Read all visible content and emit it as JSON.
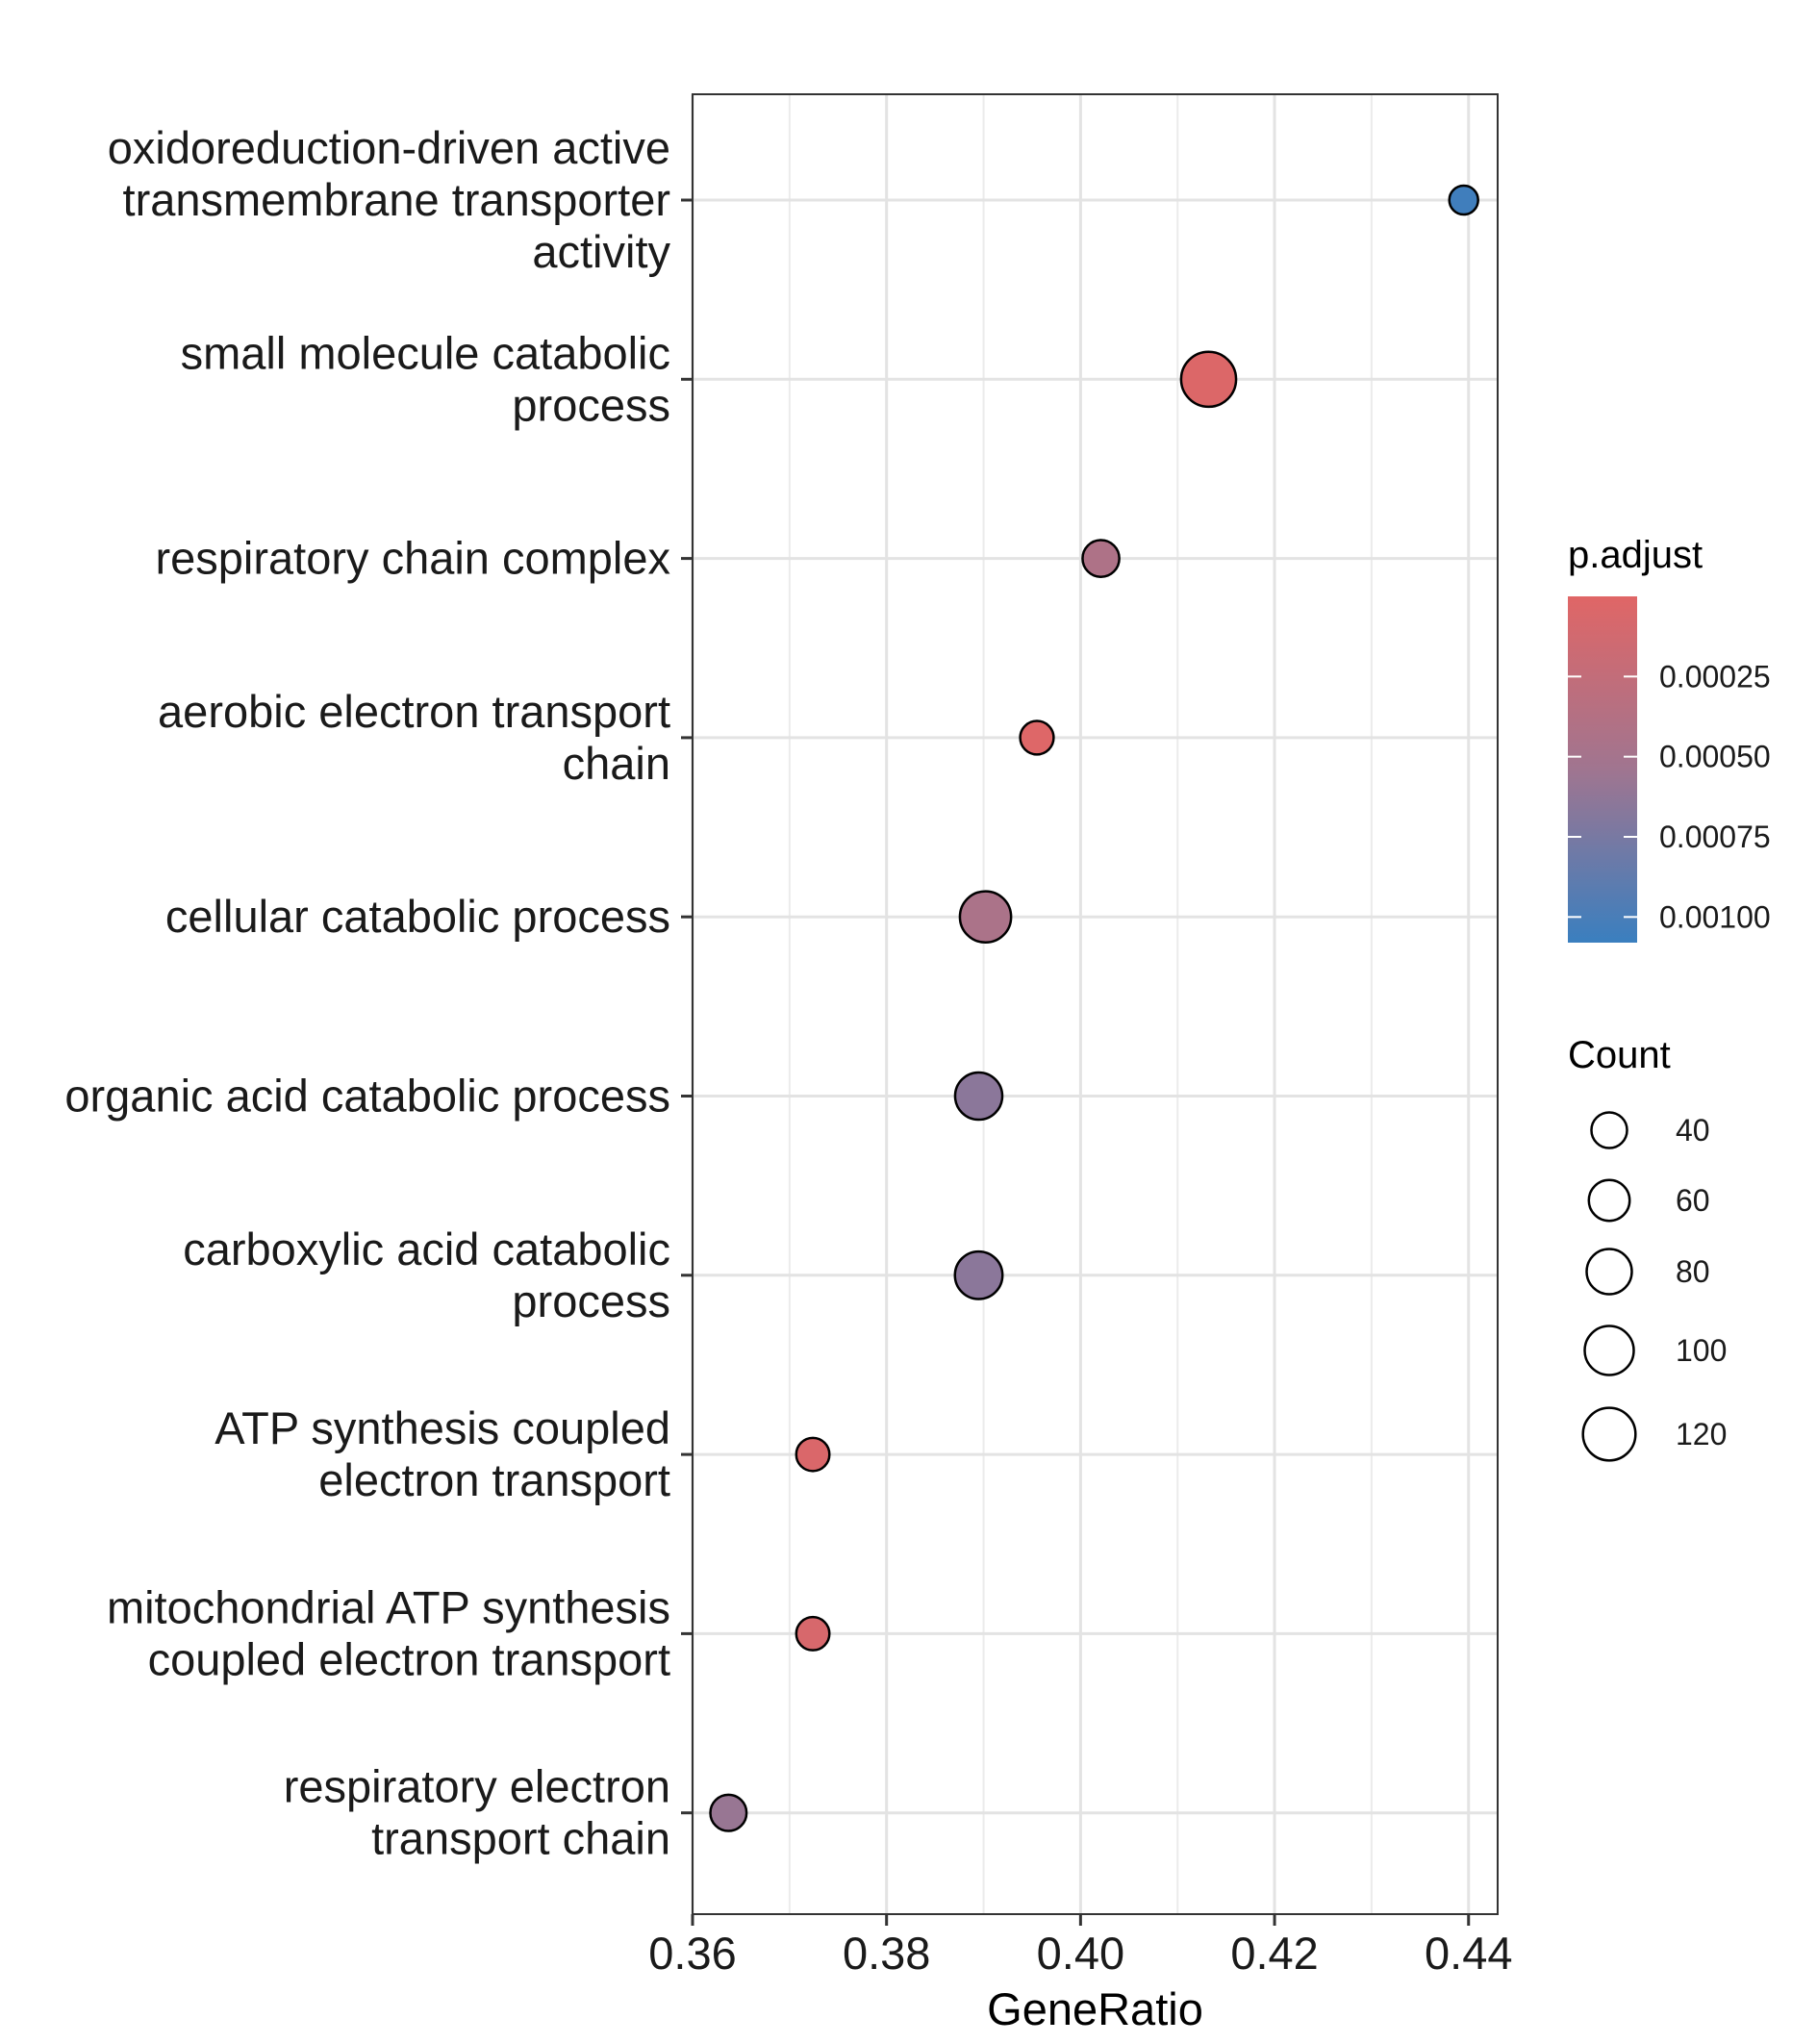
{
  "chart_data": {
    "type": "scatter",
    "xlabel": "GeneRatio",
    "ylabel": "",
    "xlim": [
      0.36,
      0.443
    ],
    "xticks": [
      0.36,
      0.38,
      0.4,
      0.42,
      0.44
    ],
    "xtick_labels": [
      "0.36",
      "0.38",
      "0.40",
      "0.42",
      "0.44"
    ],
    "grid": true,
    "legend_placement": "right",
    "categories": [
      [
        "oxidoreduction-driven active",
        "transmembrane transporter",
        "activity"
      ],
      [
        "small molecule catabolic",
        "process"
      ],
      [
        "respiratory chain complex"
      ],
      [
        "aerobic electron transport",
        "chain"
      ],
      [
        "cellular catabolic process"
      ],
      [
        "organic acid catabolic process"
      ],
      [
        "carboxylic acid catabolic",
        "process"
      ],
      [
        "ATP synthesis coupled",
        "electron transport"
      ],
      [
        "mitochondrial ATP synthesis",
        "coupled electron transport"
      ],
      [
        "respiratory electron",
        "transport chain"
      ]
    ],
    "points": [
      {
        "x": 0.4395,
        "count": 20,
        "p_adjust": 0.00105
      },
      {
        "x": 0.4132,
        "count": 135,
        "p_adjust": 3e-05
      },
      {
        "x": 0.4021,
        "count": 44,
        "p_adjust": 0.00042
      },
      {
        "x": 0.3955,
        "count": 33,
        "p_adjust": 2e-05
      },
      {
        "x": 0.3902,
        "count": 112,
        "p_adjust": 0.00045
      },
      {
        "x": 0.3895,
        "count": 90,
        "p_adjust": 0.00065
      },
      {
        "x": 0.3895,
        "count": 92,
        "p_adjust": 0.00065
      },
      {
        "x": 0.3724,
        "count": 32,
        "p_adjust": 5e-05
      },
      {
        "x": 0.3724,
        "count": 32,
        "p_adjust": 8e-05
      },
      {
        "x": 0.3637,
        "count": 42,
        "p_adjust": 0.00058
      }
    ],
    "color_legend": {
      "title": "p.adjust",
      "ticks": [
        0.00025,
        0.0005,
        0.00075,
        0.001
      ],
      "tick_labels": [
        "0.00025",
        "0.00050",
        "0.00075",
        "0.00100"
      ],
      "range": [
        0.0,
        0.00108
      ],
      "low_color": "#E06666",
      "high_color": "#3A7FBF"
    },
    "size_legend": {
      "title": "Count",
      "values": [
        40,
        60,
        80,
        100,
        120
      ],
      "labels": [
        "40",
        "60",
        "80",
        "100",
        "120"
      ]
    }
  }
}
